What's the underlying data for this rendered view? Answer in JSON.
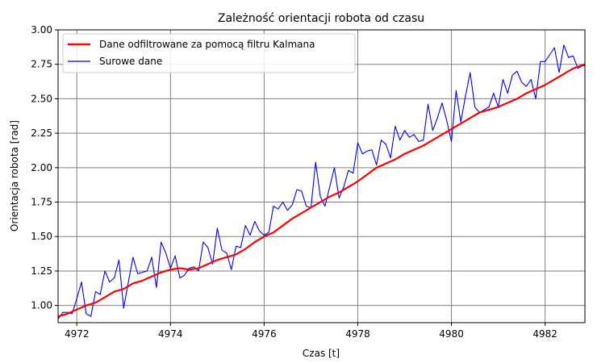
{
  "chart_data": {
    "type": "line",
    "title": "Zależność orientacji robota od czasu",
    "xlabel": "Czas [t]",
    "ylabel": "Orientacja robota [rad]",
    "xlim": [
      4971.6,
      4982.85
    ],
    "ylim": [
      0.875,
      3.0
    ],
    "xticks": [
      4972,
      4974,
      4976,
      4978,
      4980,
      4982
    ],
    "xtick_labels": [
      "4972",
      "4974",
      "4976",
      "4978",
      "4980",
      "4982"
    ],
    "yticks": [
      1.0,
      1.25,
      1.5,
      1.75,
      2.0,
      2.25,
      2.5,
      2.75,
      3.0
    ],
    "ytick_labels": [
      "1.00",
      "1.25",
      "1.50",
      "1.75",
      "2.00",
      "2.25",
      "2.50",
      "2.75",
      "3.00"
    ],
    "grid": true,
    "legend_position": "top-left",
    "series": [
      {
        "name": "Dane odfiltrowane za pomocą filtru Kalmana",
        "color": "#ff0000",
        "x": [
          4971.6,
          4971.8,
          4972.0,
          4972.2,
          4972.4,
          4972.6,
          4972.8,
          4973.0,
          4973.2,
          4973.4,
          4973.6,
          4973.8,
          4974.0,
          4974.2,
          4974.4,
          4974.6,
          4974.8,
          4975.0,
          4975.2,
          4975.4,
          4975.6,
          4975.8,
          4976.0,
          4976.2,
          4976.4,
          4976.6,
          4976.8,
          4977.0,
          4977.2,
          4977.4,
          4977.6,
          4977.8,
          4978.0,
          4978.2,
          4978.4,
          4978.6,
          4978.8,
          4979.0,
          4979.2,
          4979.4,
          4979.6,
          4979.8,
          4980.0,
          4980.2,
          4980.4,
          4980.6,
          4980.8,
          4981.0,
          4981.2,
          4981.4,
          4981.6,
          4981.8,
          4982.0,
          4982.2,
          4982.4,
          4982.6,
          4982.85
        ],
        "y": [
          0.92,
          0.94,
          0.97,
          1.0,
          1.02,
          1.06,
          1.1,
          1.12,
          1.16,
          1.18,
          1.21,
          1.24,
          1.26,
          1.27,
          1.26,
          1.27,
          1.3,
          1.33,
          1.35,
          1.37,
          1.41,
          1.46,
          1.5,
          1.53,
          1.58,
          1.63,
          1.67,
          1.71,
          1.75,
          1.79,
          1.82,
          1.86,
          1.9,
          1.95,
          2.0,
          2.03,
          2.06,
          2.1,
          2.13,
          2.16,
          2.2,
          2.24,
          2.28,
          2.32,
          2.36,
          2.4,
          2.42,
          2.44,
          2.47,
          2.5,
          2.54,
          2.57,
          2.6,
          2.64,
          2.68,
          2.72,
          2.75
        ]
      },
      {
        "name": "Surowe dane",
        "color": "#0000ff",
        "x": [
          4971.6,
          4971.7,
          4971.8,
          4971.9,
          4972.0,
          4972.1,
          4972.2,
          4972.3,
          4972.4,
          4972.5,
          4972.6,
          4972.7,
          4972.8,
          4972.9,
          4973.0,
          4973.1,
          4973.2,
          4973.3,
          4973.4,
          4973.5,
          4973.6,
          4973.7,
          4973.8,
          4973.9,
          4974.0,
          4974.1,
          4974.2,
          4974.3,
          4974.4,
          4974.5,
          4974.6,
          4974.7,
          4974.8,
          4974.9,
          4975.0,
          4975.1,
          4975.2,
          4975.3,
          4975.4,
          4975.5,
          4975.6,
          4975.7,
          4975.8,
          4975.9,
          4976.0,
          4976.1,
          4976.2,
          4976.3,
          4976.4,
          4976.5,
          4976.6,
          4976.7,
          4976.8,
          4976.9,
          4977.0,
          4977.1,
          4977.2,
          4977.3,
          4977.4,
          4977.5,
          4977.6,
          4977.7,
          4977.8,
          4977.9,
          4978.0,
          4978.1,
          4978.2,
          4978.3,
          4978.4,
          4978.5,
          4978.6,
          4978.7,
          4978.8,
          4978.9,
          4979.0,
          4979.1,
          4979.2,
          4979.3,
          4979.4,
          4979.5,
          4979.6,
          4979.7,
          4979.8,
          4979.9,
          4980.0,
          4980.1,
          4980.2,
          4980.3,
          4980.4,
          4980.5,
          4980.6,
          4980.7,
          4980.8,
          4980.9,
          4981.0,
          4981.1,
          4981.2,
          4981.3,
          4981.4,
          4981.5,
          4981.6,
          4981.7,
          4981.8,
          4981.9,
          4982.0,
          4982.1,
          4982.2,
          4982.3,
          4982.4,
          4982.5,
          4982.6,
          4982.7,
          4982.8,
          4982.85
        ],
        "y": [
          0.9,
          0.95,
          0.95,
          0.94,
          1.05,
          1.17,
          0.94,
          0.92,
          1.1,
          1.08,
          1.25,
          1.17,
          1.2,
          1.33,
          0.98,
          1.17,
          1.35,
          1.23,
          1.24,
          1.25,
          1.35,
          1.13,
          1.46,
          1.38,
          1.27,
          1.36,
          1.2,
          1.22,
          1.27,
          1.28,
          1.25,
          1.46,
          1.42,
          1.3,
          1.56,
          1.4,
          1.38,
          1.26,
          1.43,
          1.42,
          1.58,
          1.51,
          1.61,
          1.54,
          1.51,
          1.53,
          1.72,
          1.7,
          1.75,
          1.69,
          1.73,
          1.84,
          1.83,
          1.72,
          1.71,
          2.04,
          1.79,
          1.72,
          1.86,
          2.0,
          1.78,
          1.86,
          1.98,
          1.96,
          2.18,
          2.1,
          2.12,
          2.13,
          2.02,
          2.2,
          2.17,
          2.07,
          2.3,
          2.2,
          2.27,
          2.22,
          2.24,
          2.19,
          2.2,
          2.46,
          2.27,
          2.36,
          2.47,
          2.34,
          2.19,
          2.56,
          2.33,
          2.52,
          2.69,
          2.44,
          2.4,
          2.42,
          2.44,
          2.54,
          2.44,
          2.64,
          2.54,
          2.67,
          2.7,
          2.62,
          2.59,
          2.64,
          2.5,
          2.77,
          2.77,
          2.82,
          2.87,
          2.69,
          2.89,
          2.8,
          2.81,
          2.72,
          2.74,
          2.74
        ]
      }
    ]
  }
}
